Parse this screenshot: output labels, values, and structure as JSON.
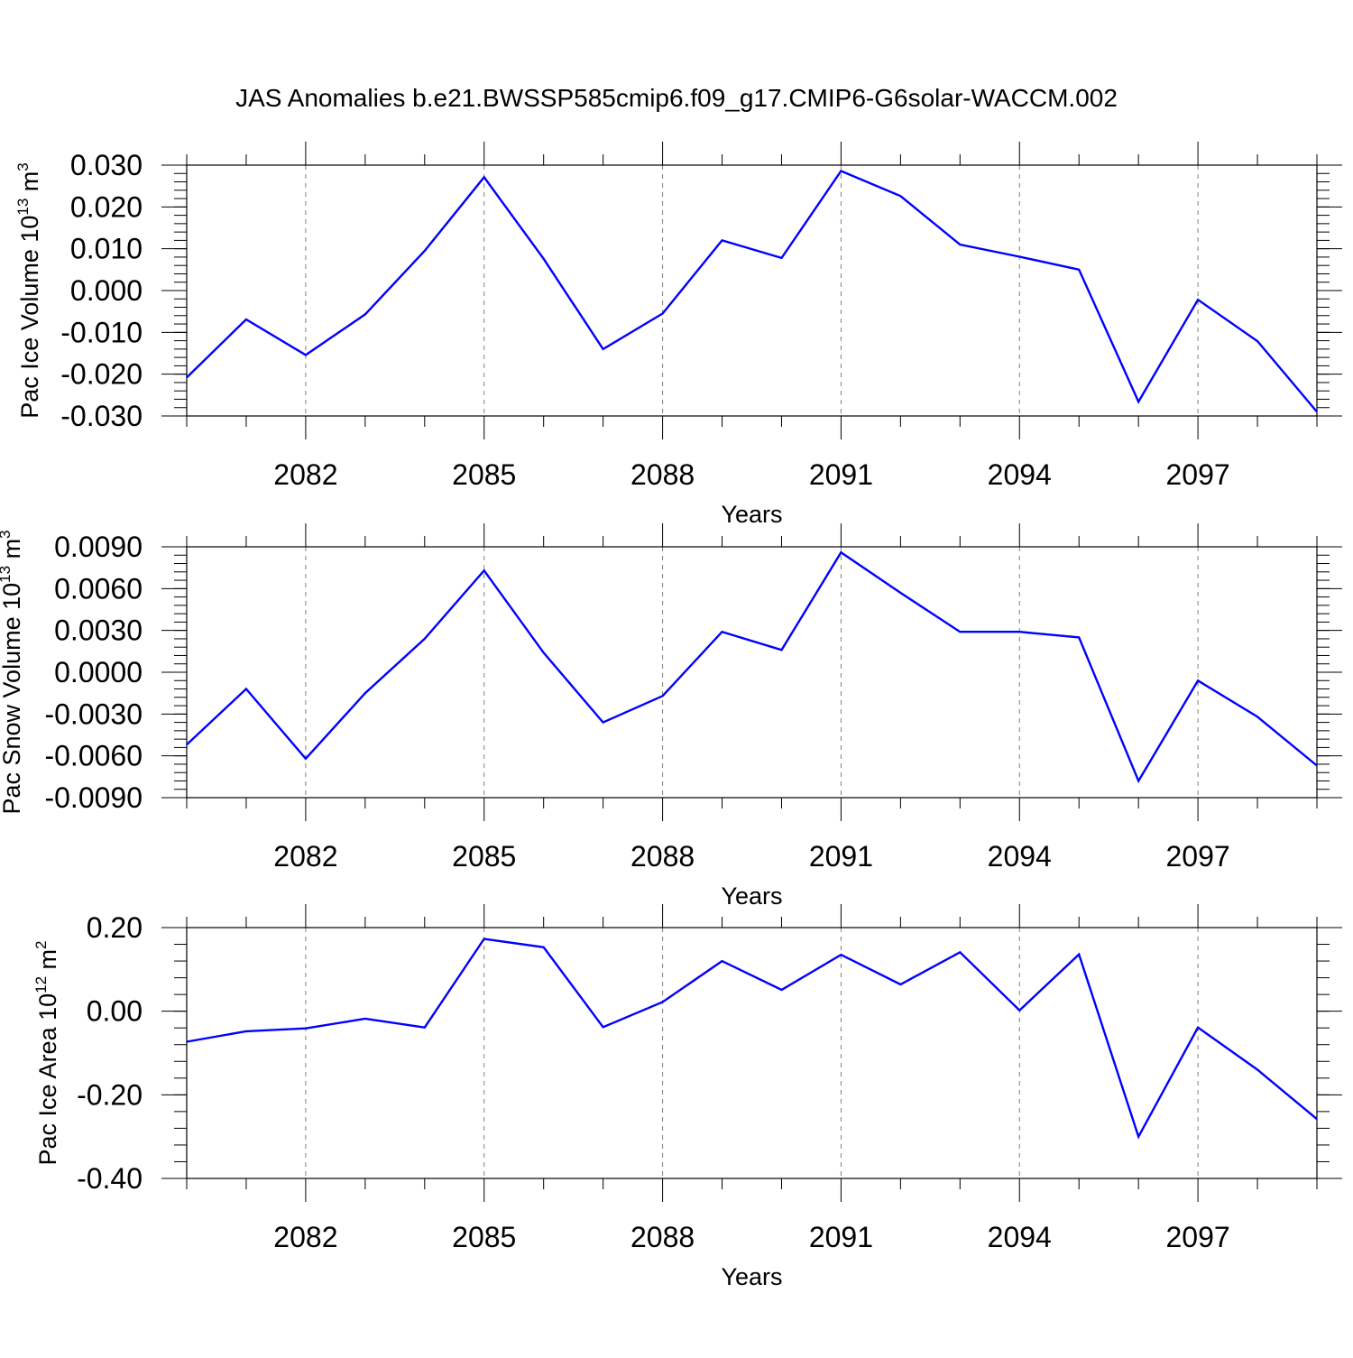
{
  "figure_title": "JAS Anomalies b.e21.BWSSP585cmip6.f09_g17.CMIP6-G6solar-WACCM.002",
  "line_color": "#0000ff",
  "chart_data": [
    {
      "type": "line",
      "xlabel": "Years",
      "ylabel": "Pac Ice Volume 10",
      "ylabel_exp": "13",
      "ylabel_unit": " m",
      "ylabel_unit_exp": "3",
      "ylim": [
        -0.03,
        0.03
      ],
      "yticks": [
        -0.03,
        -0.02,
        -0.01,
        0.0,
        0.01,
        0.02,
        0.03
      ],
      "ytick_labels": [
        "-0.030",
        "-0.020",
        "-0.010",
        "0.000",
        "0.010",
        "0.020",
        "0.030"
      ],
      "yminor_step": 0.002,
      "xlim": [
        2080,
        2099
      ],
      "xticks": [
        2082,
        2085,
        2088,
        2091,
        2094,
        2097
      ],
      "xtick_labels": [
        "2082",
        "2085",
        "2088",
        "2091",
        "2094",
        "2097"
      ],
      "grid": "vertical dashed at major x ticks",
      "series": [
        {
          "x": [
            2080,
            2081,
            2082,
            2083,
            2084,
            2085,
            2086,
            2087,
            2088,
            2089,
            2090,
            2091,
            2092,
            2093,
            2094,
            2095,
            2096,
            2097,
            2098,
            2099
          ],
          "values": [
            -0.0208,
            -0.0069,
            -0.0154,
            -0.0057,
            0.0095,
            0.0271,
            0.0076,
            -0.014,
            -0.0055,
            0.012,
            0.0078,
            0.0286,
            0.0226,
            0.011,
            0.0081,
            0.005,
            -0.0266,
            -0.0022,
            -0.0121,
            -0.029
          ]
        }
      ]
    },
    {
      "type": "line",
      "xlabel": "Years",
      "ylabel": "Pac Snow Volume 10",
      "ylabel_exp": "13",
      "ylabel_unit": " m",
      "ylabel_unit_exp": "3",
      "ylim": [
        -0.009,
        0.009
      ],
      "yticks": [
        -0.009,
        -0.006,
        -0.003,
        0.0,
        0.003,
        0.006,
        0.009
      ],
      "ytick_labels": [
        "-0.0090",
        "-0.0060",
        "-0.0030",
        "0.0000",
        "0.0030",
        "0.0060",
        "0.0090"
      ],
      "yminor_step": 0.0006,
      "xlim": [
        2080,
        2099
      ],
      "xticks": [
        2082,
        2085,
        2088,
        2091,
        2094,
        2097
      ],
      "xtick_labels": [
        "2082",
        "2085",
        "2088",
        "2091",
        "2094",
        "2097"
      ],
      "grid": "vertical dashed at major x ticks",
      "series": [
        {
          "x": [
            2080,
            2081,
            2082,
            2083,
            2084,
            2085,
            2086,
            2087,
            2088,
            2089,
            2090,
            2091,
            2092,
            2093,
            2094,
            2095,
            2096,
            2097,
            2098,
            2099
          ],
          "values": [
            -0.0052,
            -0.0012,
            -0.0062,
            -0.0015,
            0.0024,
            0.0073,
            0.0014,
            -0.0036,
            -0.0017,
            0.0029,
            0.0016,
            0.0086,
            0.0057,
            0.0029,
            0.0029,
            0.0025,
            -0.0078,
            -0.0006,
            -0.0032,
            -0.0067
          ]
        }
      ]
    },
    {
      "type": "line",
      "xlabel": "Years",
      "ylabel": "Pac Ice Area 10",
      "ylabel_exp": "12",
      "ylabel_unit": " m",
      "ylabel_unit_exp": "2",
      "ylim": [
        -0.4,
        0.2
      ],
      "yticks": [
        -0.4,
        -0.2,
        0.0,
        0.2
      ],
      "ytick_labels": [
        "-0.40",
        "-0.20",
        "0.00",
        "0.20"
      ],
      "yminor_step": 0.04,
      "xlim": [
        2080,
        2099
      ],
      "xticks": [
        2082,
        2085,
        2088,
        2091,
        2094,
        2097
      ],
      "xtick_labels": [
        "2082",
        "2085",
        "2088",
        "2091",
        "2094",
        "2097"
      ],
      "grid": "vertical dashed at major x ticks",
      "series": [
        {
          "x": [
            2080,
            2081,
            2082,
            2083,
            2084,
            2085,
            2086,
            2087,
            2088,
            2089,
            2090,
            2091,
            2092,
            2093,
            2094,
            2095,
            2096,
            2097,
            2098,
            2099
          ],
          "values": [
            -0.073,
            -0.048,
            -0.041,
            -0.018,
            -0.039,
            0.173,
            0.153,
            -0.038,
            0.022,
            0.12,
            0.051,
            0.135,
            0.064,
            0.141,
            0.002,
            0.136,
            -0.3,
            -0.039,
            -0.14,
            -0.258
          ]
        }
      ]
    }
  ]
}
